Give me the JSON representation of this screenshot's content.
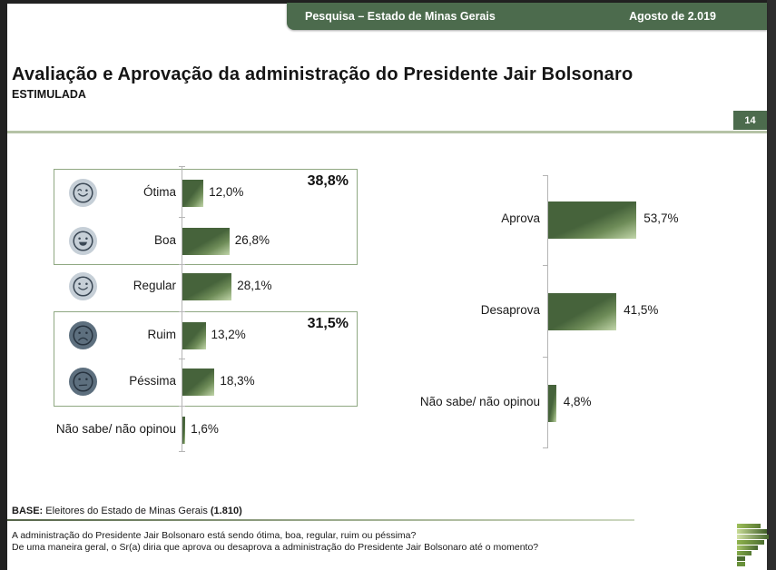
{
  "header": {
    "bar_title": "Pesquisa – Estado de Minas Gerais",
    "bar_date": "Agosto de 2.019",
    "accent_color": "#4c6b4d"
  },
  "slide": {
    "title": "Avaliação e Aprovação da administração do Presidente Jair Bolsonaro",
    "subtitle": "ESTIMULADA",
    "page_number": "14"
  },
  "chart_data": [
    {
      "type": "bar",
      "orientation": "horizontal",
      "name": "avaliacao",
      "categories": [
        "Ótima",
        "Boa",
        "Regular",
        "Ruim",
        "Péssima",
        "Não sabe/ não opinou"
      ],
      "values": [
        12.0,
        26.8,
        28.1,
        13.2,
        18.3,
        1.6
      ],
      "value_labels": [
        "12,0%",
        "26,8%",
        "28,1%",
        "13,2%",
        "18,3%",
        "1,6%"
      ],
      "icons": [
        "face-wink",
        "face-grin",
        "face-smile",
        "face-frown",
        "face-neutral",
        null
      ],
      "icon_dark": [
        false,
        false,
        false,
        true,
        true,
        null
      ],
      "groups": [
        {
          "label": "38,8%",
          "rows": [
            0,
            1
          ]
        },
        {
          "label": "31,5%",
          "rows": [
            3,
            4
          ]
        }
      ],
      "xlim": [
        0,
        100
      ],
      "bar_color_dark": "#46633b",
      "bar_color_light": "#c2d6aa",
      "grid": false,
      "legend": "none"
    },
    {
      "type": "bar",
      "orientation": "horizontal",
      "name": "aprovacao",
      "categories": [
        "Aprova",
        "Desaprova",
        "Não sabe/ não opinou"
      ],
      "values": [
        53.7,
        41.5,
        4.8
      ],
      "value_labels": [
        "53,7%",
        "41,5%",
        "4,8%"
      ],
      "xlim": [
        0,
        100
      ],
      "bar_color_dark": "#46633b",
      "bar_color_light": "#c2d6aa",
      "grid": false,
      "legend": "none"
    }
  ],
  "footer": {
    "base_label": "BASE:",
    "base_text": " Eleitores do Estado de Minas Gerais ",
    "base_count": "(1.810)",
    "question1": "A administração do Presidente Jair Bolsonaro está sendo ótima, boa, regular, ruim ou péssima?",
    "question2": "De uma maneira geral, o Sr(a) diria que aprova ou desaprova a administração do Presidente Jair Bolsonaro até o momento?"
  }
}
